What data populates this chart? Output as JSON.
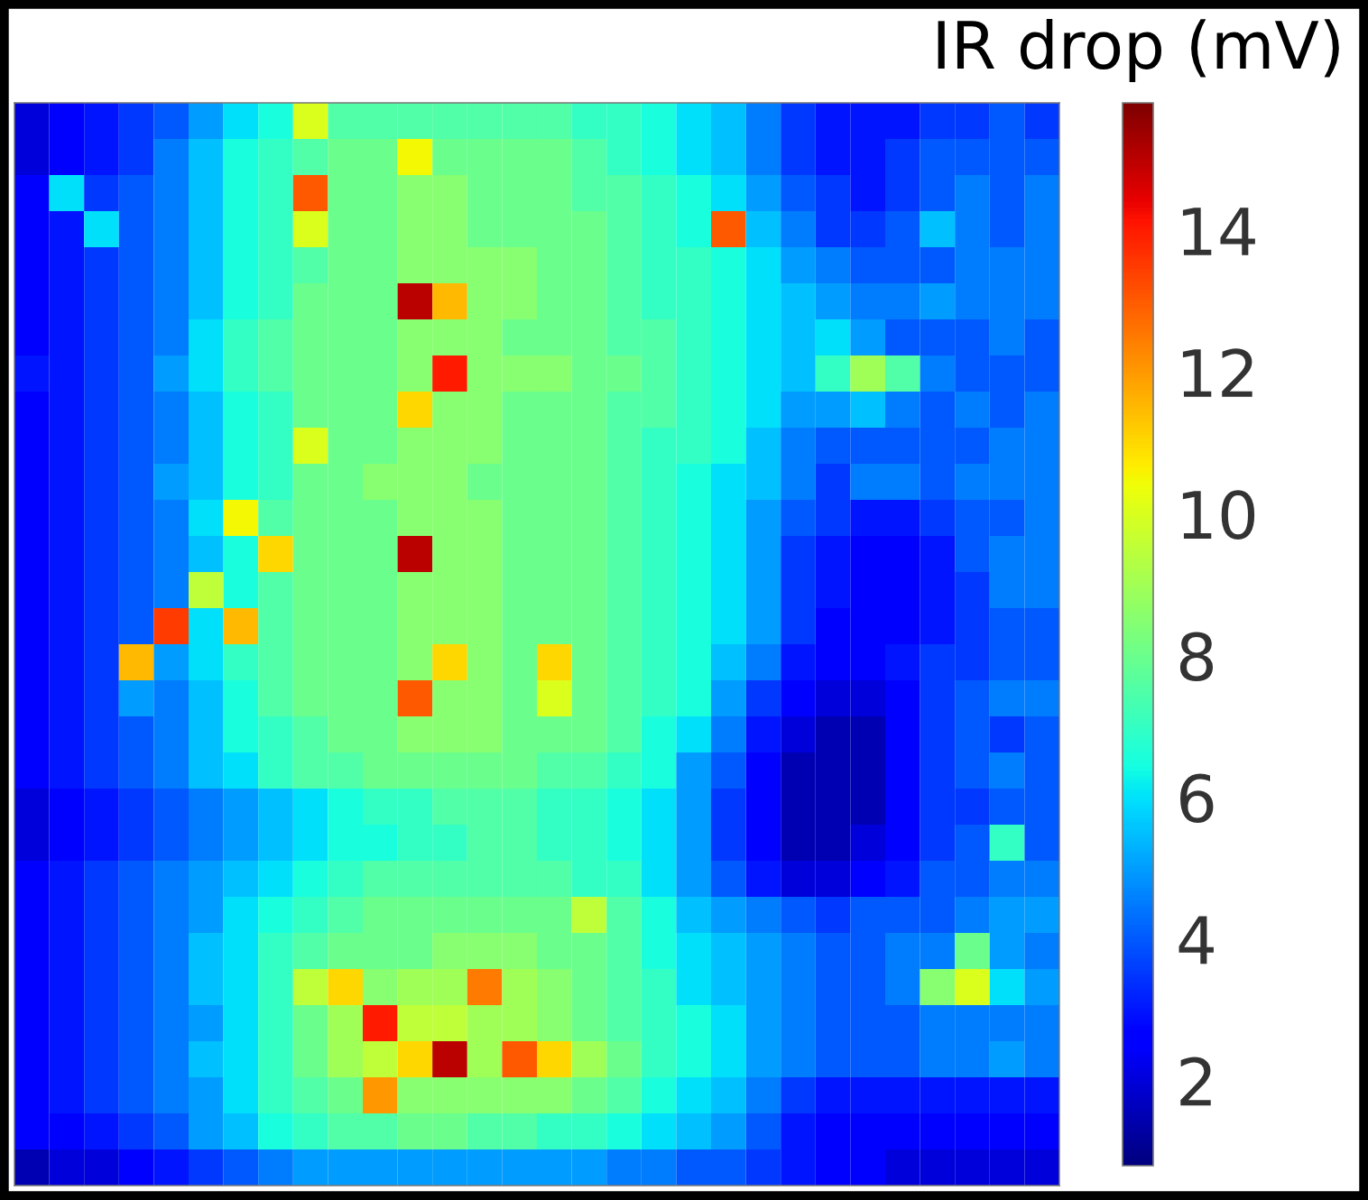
{
  "chart_data": {
    "type": "heatmap",
    "clabel": "IR drop (mV)",
    "categories": [
      null,
      null,
      null,
      null,
      null,
      null,
      null,
      null,
      null,
      null,
      null,
      null,
      null,
      null,
      null,
      null,
      null,
      null,
      null,
      null,
      null,
      null,
      null,
      null,
      null,
      null,
      null,
      null,
      null,
      null
    ],
    "y_categories": [
      null,
      null,
      null,
      null,
      null,
      null,
      null,
      null,
      null,
      null,
      null,
      null,
      null,
      null,
      null,
      null,
      null,
      null,
      null,
      null,
      null,
      null,
      null,
      null,
      null,
      null,
      null,
      null,
      null,
      null
    ],
    "cells": [
      [
        2,
        2.5,
        3,
        3.5,
        4,
        5,
        6,
        6.5,
        10,
        7.5,
        7.5,
        7.5,
        7.5,
        7.5,
        7.5,
        7.5,
        7,
        7,
        6.5,
        6,
        5.5,
        4.5,
        3.5,
        3,
        3,
        3,
        3.5,
        3.5,
        4,
        3.5
      ],
      [
        2,
        2.5,
        3,
        3.5,
        4.5,
        5.5,
        6.5,
        7,
        7.5,
        8,
        8,
        10.5,
        8,
        8,
        8,
        8,
        7.5,
        7,
        6.5,
        6,
        5.5,
        4.5,
        3.5,
        3,
        3,
        3.5,
        4,
        4,
        4,
        4
      ],
      [
        2.5,
        6,
        3.5,
        4,
        4.5,
        5.5,
        6.5,
        7,
        13,
        8,
        8,
        8.5,
        8.5,
        8,
        8,
        8,
        7.5,
        7.5,
        7,
        6.5,
        6,
        5,
        4,
        3.5,
        3,
        3.5,
        4,
        4.5,
        4,
        4.5
      ],
      [
        2.5,
        3,
        6,
        4,
        4.5,
        5.5,
        6.5,
        7,
        10,
        8,
        8,
        8.5,
        8.5,
        8,
        8,
        8,
        8,
        7.5,
        7,
        6.5,
        13,
        5.5,
        4.5,
        3.5,
        3.5,
        4,
        5.5,
        4.5,
        4,
        4.5
      ],
      [
        2.5,
        3,
        3.5,
        4,
        4.5,
        5.5,
        6.5,
        7,
        7.5,
        8,
        8,
        8.5,
        8.5,
        8.5,
        8.5,
        8,
        8,
        7.5,
        7,
        7,
        6.5,
        6,
        5,
        4.5,
        4,
        4,
        4,
        4.5,
        4.5,
        4.5
      ],
      [
        2.5,
        3,
        3.5,
        4,
        4.5,
        5.5,
        6.5,
        7,
        8,
        8,
        8,
        15,
        11.5,
        8.5,
        8.5,
        8,
        8,
        7.5,
        7,
        7,
        6.5,
        6,
        5.5,
        5,
        4.5,
        4.5,
        5,
        4.5,
        4.5,
        4.5
      ],
      [
        2.5,
        3,
        3.5,
        4,
        4.5,
        6,
        7,
        7.5,
        8,
        8,
        8,
        8.5,
        8.5,
        8.5,
        8,
        8,
        8,
        7.5,
        7.5,
        7,
        6.5,
        6,
        5.5,
        6,
        5,
        4,
        4,
        4,
        4.5,
        4
      ],
      [
        3,
        3,
        3.5,
        4,
        5,
        6,
        7,
        7.5,
        8,
        8,
        8,
        8.5,
        14,
        8.5,
        8.5,
        8.5,
        8,
        8,
        7.5,
        7,
        6.5,
        6,
        5.5,
        7,
        9,
        7.5,
        4.5,
        4,
        4,
        4
      ],
      [
        2.5,
        3,
        3.5,
        4,
        4.5,
        5.5,
        6.5,
        7,
        8,
        8,
        8,
        11,
        8.5,
        8.5,
        8,
        8,
        8,
        7.5,
        7.5,
        7,
        6.5,
        6,
        5,
        5,
        5.5,
        4.5,
        4,
        4.5,
        4,
        4.5
      ],
      [
        2.5,
        3,
        3.5,
        4,
        4.5,
        5.5,
        6.5,
        7,
        10,
        8,
        8,
        8.5,
        8.5,
        8.5,
        8,
        8,
        8,
        7.5,
        7,
        7,
        6.5,
        5.5,
        4.5,
        4,
        4,
        4,
        4,
        4,
        4.5,
        4.5
      ],
      [
        2.5,
        3,
        3.5,
        4,
        5,
        5.5,
        6.5,
        7,
        8,
        8,
        8.5,
        8.5,
        8.5,
        8,
        8,
        8,
        8,
        7.5,
        7,
        6.5,
        6,
        5.5,
        4.5,
        3.5,
        4.5,
        4.5,
        4,
        4.5,
        4.5,
        4.5
      ],
      [
        2.5,
        3,
        3.5,
        4,
        4.5,
        6,
        10.5,
        7.5,
        8,
        8,
        8,
        8.5,
        8.5,
        8.5,
        8,
        8,
        8,
        7.5,
        7,
        6.5,
        6,
        5,
        4,
        3.5,
        3,
        3,
        3.5,
        4,
        4,
        4.5
      ],
      [
        2.5,
        3,
        3.5,
        4,
        4.5,
        5.5,
        6.5,
        11,
        8,
        8,
        8,
        15,
        8.5,
        8.5,
        8,
        8,
        8,
        7.5,
        7,
        6.5,
        6,
        5,
        3.5,
        3,
        2.5,
        2.5,
        3,
        4,
        4.5,
        4.5
      ],
      [
        2.5,
        3,
        3.5,
        4,
        4.5,
        9.5,
        6.5,
        7.5,
        8,
        8,
        8,
        8.5,
        8.5,
        8.5,
        8,
        8,
        8,
        7.5,
        7,
        6.5,
        6,
        5,
        3.5,
        3,
        2.5,
        2.5,
        3,
        3.5,
        4.5,
        4.5
      ],
      [
        2.5,
        3,
        3.5,
        4,
        13.5,
        6,
        11.5,
        7.5,
        8,
        8,
        8,
        8.5,
        8.5,
        8.5,
        8,
        8,
        8,
        7.5,
        7,
        6.5,
        6,
        5,
        3.5,
        2.5,
        2.5,
        2.5,
        3,
        3.5,
        4,
        4
      ],
      [
        2.5,
        3,
        3.5,
        11.5,
        5,
        6,
        7,
        7.5,
        8,
        8,
        8,
        8.5,
        11,
        8.5,
        8,
        11,
        8,
        7.5,
        7,
        6.5,
        5.5,
        4.5,
        3,
        2.5,
        2.5,
        3,
        3.5,
        3.5,
        4,
        4
      ],
      [
        2.5,
        3,
        3.5,
        5,
        4.5,
        5.5,
        6.5,
        7.5,
        8,
        8,
        8,
        13,
        8.5,
        8.5,
        8,
        10,
        8,
        7.5,
        7,
        6.5,
        5,
        3.5,
        2.5,
        2,
        2,
        2.5,
        3.5,
        4,
        4.5,
        4.5
      ],
      [
        2.5,
        3,
        3.5,
        4,
        4.5,
        5.5,
        6.5,
        7,
        7.5,
        8,
        8,
        8.5,
        8.5,
        8.5,
        8,
        8,
        8,
        7.5,
        6.5,
        6,
        4.5,
        3,
        2,
        1.5,
        1.5,
        2.5,
        3.5,
        4,
        3.5,
        4
      ],
      [
        2.5,
        3,
        3.5,
        4,
        4.5,
        5.5,
        6,
        7,
        7.5,
        7.5,
        8,
        8,
        8,
        8,
        8,
        7.5,
        7.5,
        7,
        6.5,
        5,
        4,
        2.5,
        1.5,
        1.5,
        1.5,
        2.5,
        3.5,
        4,
        4.5,
        4
      ],
      [
        2,
        2.5,
        3,
        3.5,
        4,
        4.5,
        5,
        5.5,
        6,
        6.5,
        7,
        7,
        7.5,
        7.5,
        7.5,
        7,
        7,
        6.5,
        6,
        5,
        3.5,
        2.5,
        1.5,
        1.5,
        1.5,
        2.5,
        3.5,
        3.5,
        4,
        4
      ],
      [
        2,
        2.5,
        3,
        3.5,
        4,
        4.5,
        5,
        5.5,
        6,
        6.5,
        6.5,
        7,
        7,
        7.5,
        7.5,
        7,
        7,
        6.5,
        6,
        5,
        3.5,
        2.5,
        1.5,
        1.5,
        2,
        2.5,
        3.5,
        4,
        7,
        4
      ],
      [
        2.5,
        3,
        3.5,
        4,
        4.5,
        5,
        5.5,
        6,
        6.5,
        7,
        7.5,
        7.5,
        7.5,
        7.5,
        7.5,
        7.5,
        7,
        7,
        6,
        5,
        4,
        3,
        2,
        2,
        2.5,
        3,
        4,
        4,
        4.5,
        4.5
      ],
      [
        2.5,
        3,
        3.5,
        4,
        4.5,
        5,
        6,
        6.5,
        7,
        7.5,
        8,
        8,
        8,
        8,
        8,
        8,
        9.5,
        7.5,
        6.5,
        5.5,
        5,
        4.5,
        4,
        3.5,
        4,
        4,
        4,
        4.5,
        5,
        5
      ],
      [
        2.5,
        3,
        3.5,
        4,
        4.5,
        5.5,
        6,
        7,
        7.5,
        8,
        8,
        8,
        8.5,
        8.5,
        8.5,
        8,
        8,
        7.5,
        6.5,
        6,
        5.5,
        5,
        4.5,
        4,
        4,
        4.5,
        4.5,
        8,
        5,
        4.5
      ],
      [
        2.5,
        3,
        3.5,
        4,
        4.5,
        5.5,
        6,
        7,
        9.5,
        11,
        8.5,
        9,
        9,
        12.5,
        9,
        8.5,
        8,
        7.5,
        7,
        6,
        5.5,
        5,
        4.5,
        4,
        4,
        4.5,
        8.5,
        10,
        6,
        5
      ],
      [
        2.5,
        3,
        3.5,
        4,
        4.5,
        5,
        6,
        7,
        8,
        9,
        14,
        9.5,
        9.5,
        9,
        9,
        8.5,
        8,
        7.5,
        7,
        6.5,
        6,
        5,
        4.5,
        4,
        4,
        4,
        4.5,
        4.5,
        4.5,
        4.5
      ],
      [
        2.5,
        3,
        3.5,
        4,
        4.5,
        5.5,
        6,
        7,
        8,
        9,
        9.5,
        11,
        15,
        9,
        13,
        11,
        9,
        8,
        7,
        6.5,
        6,
        5,
        4.5,
        4,
        4,
        4,
        4.5,
        4.5,
        5,
        4.5
      ],
      [
        2.5,
        3,
        3.5,
        4,
        4.5,
        5,
        6,
        7,
        7.5,
        8,
        12,
        8.5,
        8.5,
        8.5,
        8.5,
        8.5,
        8,
        7.5,
        6.5,
        6,
        5.5,
        4.5,
        3.5,
        3,
        3,
        3,
        3,
        3,
        3,
        3
      ],
      [
        2.5,
        2.5,
        3,
        3.5,
        4,
        5,
        5.5,
        6.5,
        7,
        7.5,
        7.5,
        8,
        8,
        7.5,
        7.5,
        7,
        7,
        6.5,
        6,
        5.5,
        5,
        4,
        3,
        2.5,
        2.5,
        2.5,
        2.5,
        2.5,
        2.5,
        2.5
      ],
      [
        1.5,
        2,
        2,
        2.5,
        3,
        3.5,
        4,
        4.5,
        5,
        5,
        5,
        5,
        5,
        5,
        5,
        5,
        5,
        4.5,
        4.5,
        4,
        4,
        3.5,
        3,
        2.5,
        2.5,
        2,
        2,
        2,
        2,
        2
      ]
    ],
    "clim": [
      0.8,
      15.8
    ],
    "cticks": [
      2,
      4,
      6,
      8,
      10,
      12,
      14
    ]
  }
}
